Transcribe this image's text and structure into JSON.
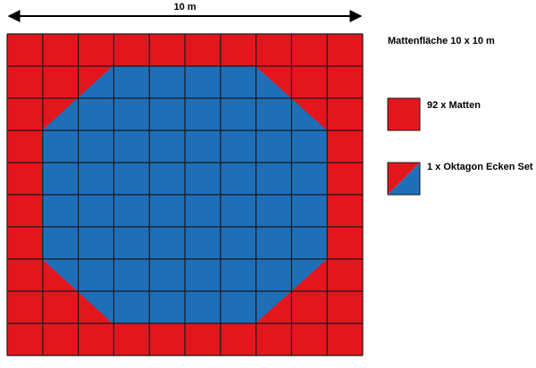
{
  "dimension_label": "10 m",
  "legend": {
    "title": "Mattenfläche 10 x 10 m",
    "items": [
      {
        "label": "92 x Matten"
      },
      {
        "label": "1 x Oktagon Ecken Set"
      }
    ]
  }
}
